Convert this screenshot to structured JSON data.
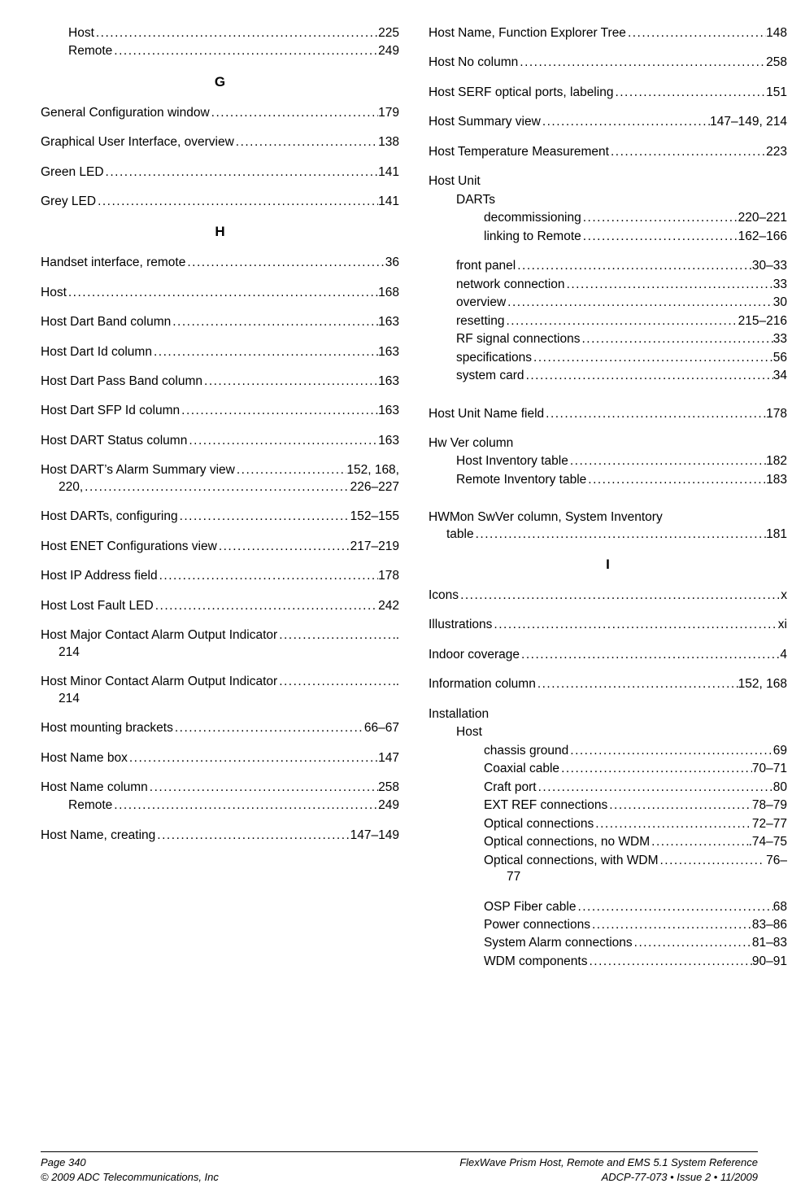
{
  "letters": {
    "G": "G",
    "H": "H",
    "I": "I"
  },
  "left": {
    "pre": [
      {
        "label": "Host",
        "pages": "225",
        "indent": 1,
        "tight": true
      },
      {
        "label": "Remote",
        "pages": "249",
        "indent": 1
      }
    ],
    "G": [
      {
        "label": "General Configuration window",
        "pages": "179"
      },
      {
        "label": "Graphical User Interface, overview",
        "pages": "138"
      },
      {
        "label": "Green LED",
        "pages": "141"
      },
      {
        "label": "Grey LED",
        "pages": "141"
      }
    ],
    "H": [
      {
        "label": "Handset interface, remote",
        "pages": "36"
      },
      {
        "label": "Host",
        "pages": "168"
      },
      {
        "label": "Host Dart Band column",
        "pages": "163"
      },
      {
        "label": "Host Dart Id column",
        "pages": "163"
      },
      {
        "label": "Host Dart Pass Band column",
        "pages": "163"
      },
      {
        "label": "Host Dart SFP Id column",
        "pages": "163"
      },
      {
        "label": "Host DART Status column",
        "pages": "163"
      },
      {
        "label": "Host DART’s Alarm Summary view",
        "pages": "152, 168,",
        "wrap_pages": "220,",
        "wrap_tail": "226–227"
      },
      {
        "label": "Host DARTs, configuring",
        "pages": "152–155"
      },
      {
        "label": "Host ENET Configurations view",
        "pages": "217–219"
      },
      {
        "label": "Host IP Address field",
        "pages": "178"
      },
      {
        "label": "Host Lost Fault LED",
        "pages": "242"
      },
      {
        "label": "Host Major Contact Alarm Output Indicator",
        "pages": ".",
        "wrap_pages": "214",
        "nodots_cont": true
      },
      {
        "label": "Host Minor Contact Alarm Output Indicator",
        "pages": ".",
        "wrap_pages": "214",
        "nodots_cont": true
      },
      {
        "label": "Host mounting brackets",
        "pages": "66–67"
      },
      {
        "label": "Host Name box",
        "pages": "147"
      },
      {
        "label": "Host Name column",
        "pages": "258",
        "tight": true
      },
      {
        "label": "Remote",
        "pages": "249",
        "indent": 1
      },
      {
        "label": "Host Name, creating",
        "pages": "147–149"
      }
    ]
  },
  "right": {
    "top": [
      {
        "label": "Host Name, Function Explorer Tree",
        "pages": "148"
      },
      {
        "label": "Host No column",
        "pages": "258"
      },
      {
        "label": "Host SERF optical ports, labeling",
        "pages": "151"
      },
      {
        "label": "Host Summary view",
        "pages": "147–149, 214"
      },
      {
        "label": "Host Temperature Measurement",
        "pages": "223"
      }
    ],
    "hostUnit": {
      "head": "Host Unit",
      "darts_head": "DARTs",
      "darts": [
        {
          "label": "decommissioning",
          "pages": "220–221"
        },
        {
          "label": "linking to Remote",
          "pages": "162–166"
        }
      ],
      "rest": [
        {
          "label": "front panel",
          "pages": "30–33"
        },
        {
          "label": "network connection",
          "pages": "33"
        },
        {
          "label": "overview",
          "pages": "30"
        },
        {
          "label": "resetting",
          "pages": "215–216"
        },
        {
          "label": "RF signal connections",
          "pages": "33"
        },
        {
          "label": "specifications",
          "pages": "56"
        },
        {
          "label": "system card",
          "pages": "34"
        }
      ]
    },
    "afterHU": [
      {
        "label": "Host Unit Name field",
        "pages": "178"
      }
    ],
    "hwVer": {
      "head": "Hw Ver column",
      "rows": [
        {
          "label": "Host Inventory table",
          "pages": "182"
        },
        {
          "label": "Remote Inventory table",
          "pages": "183"
        }
      ]
    },
    "hwmon": {
      "label": "HWMon SwVer column, System Inventory",
      "wrap_label": "table",
      "pages": "181"
    },
    "I": [
      {
        "label": "Icons",
        "pages": "x"
      },
      {
        "label": "Illustrations",
        "pages": "xi"
      },
      {
        "label": "Indoor coverage",
        "pages": "4"
      },
      {
        "label": "Information column",
        "pages": "152, 168"
      }
    ],
    "installation": {
      "head": "Installation",
      "host_head": "Host",
      "host": [
        {
          "label": "chassis ground",
          "pages": "69"
        },
        {
          "label": "Coaxial cable",
          "pages": "70–71"
        },
        {
          "label": "Craft port",
          "pages": "80"
        },
        {
          "label": "EXT REF connections",
          "pages": "78–79"
        },
        {
          "label": "Optical connections",
          "pages": "72–77"
        },
        {
          "label": "Optical connections, no WDM",
          "pages": ".74–75"
        },
        {
          "label": "Optical connections, with WDM",
          "pages": ". 76–",
          "wrap_pages": "77",
          "nodots_cont": true,
          "wrap_indent": 3
        },
        {
          "label": "OSP Fiber cable",
          "pages": "68"
        },
        {
          "label": "Power connections",
          "pages": "83–86"
        },
        {
          "label": "System Alarm connections",
          "pages": "81–83"
        },
        {
          "label": "WDM components",
          "pages": "90–91"
        }
      ]
    }
  },
  "footer": {
    "left1": "Page 340",
    "left2": "©  2009 ADC Telecommunications, Inc",
    "right1": "FlexWave Prism Host, Remote and EMS 5.1 System Reference",
    "right2": "ADCP-77-073   •   Issue 2   •   11/2009"
  }
}
